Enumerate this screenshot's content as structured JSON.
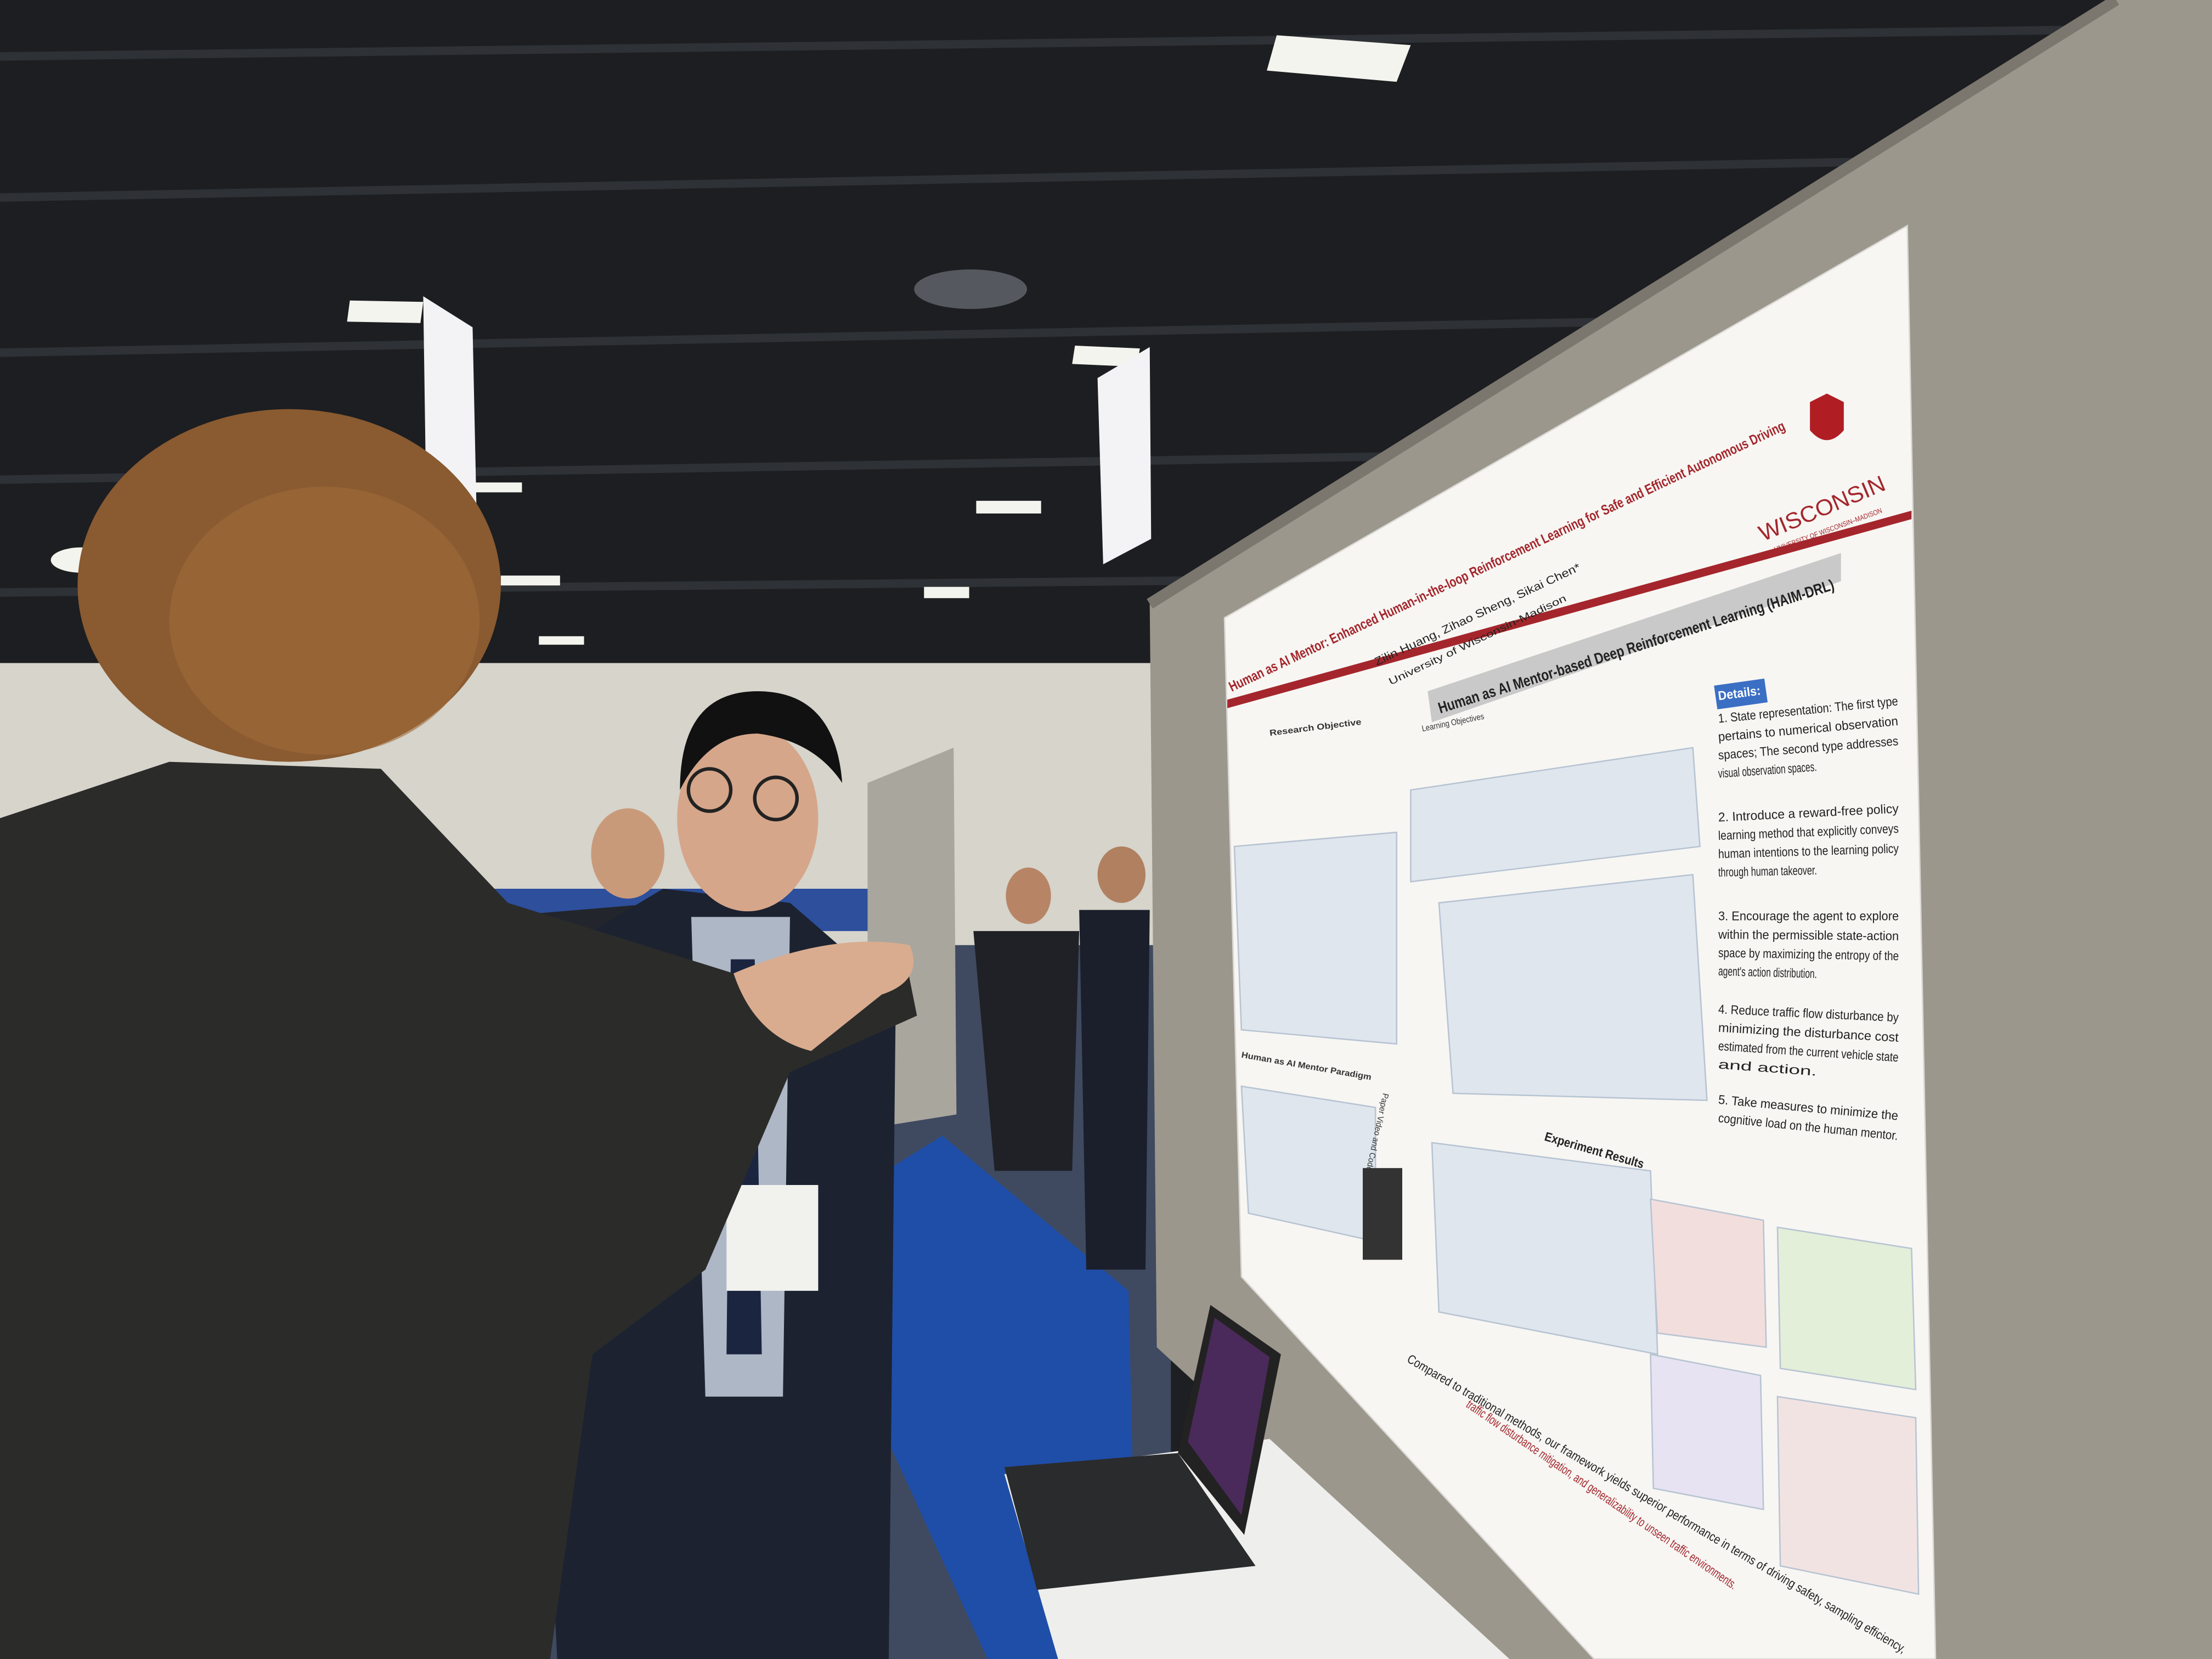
{
  "poster": {
    "title": "Human as AI Mentor: Enhanced Human-in-the-loop Reinforcement Learning for Safe and Efficient Autonomous Driving",
    "authors": "Zilin Huang, Zihao Sheng, Sikai Chen*",
    "affiliation": "University of Wisconsin-Madison",
    "logo": "WISCONSIN",
    "logo_subtitle": "UNIVERSITY OF WISCONSIN–MADISON",
    "main_heading": "Human as AI Mentor-based Deep Reinforcement Learning (HAIM-DRL)",
    "sections": [
      "Research Objective",
      "Learning Objectives",
      "Human as AI Mentor Paradigm",
      "Experiment Results"
    ],
    "qr_caption": "Paper Video and Code",
    "details_heading": "Details:",
    "details": [
      [
        "1. State representation: The first type",
        "pertains to numerical observation",
        "spaces; The second type addresses",
        "visual observation spaces."
      ],
      [
        "2. Introduce a reward-free policy",
        "learning method that explicitly conveys",
        "human intentions to the learning policy",
        "through human takeover."
      ],
      [
        "3. Encourage the agent to explore",
        "within the permissible state-action",
        "space by maximizing the entropy of the",
        "agent's action distribution."
      ],
      [
        "4. Reduce traffic flow disturbance by",
        "minimizing the disturbance cost",
        "estimated from the current vehicle state",
        "and action."
      ],
      [
        "5. Take measures to minimize the",
        "cognitive load on the human mentor."
      ]
    ],
    "conclusion": [
      "Compared to traditional methods, our framework yields superior performance in terms of driving safety, sampling efficiency,",
      "traffic flow disturbance mitigation, and generalizability to unseen traffic environments."
    ]
  }
}
